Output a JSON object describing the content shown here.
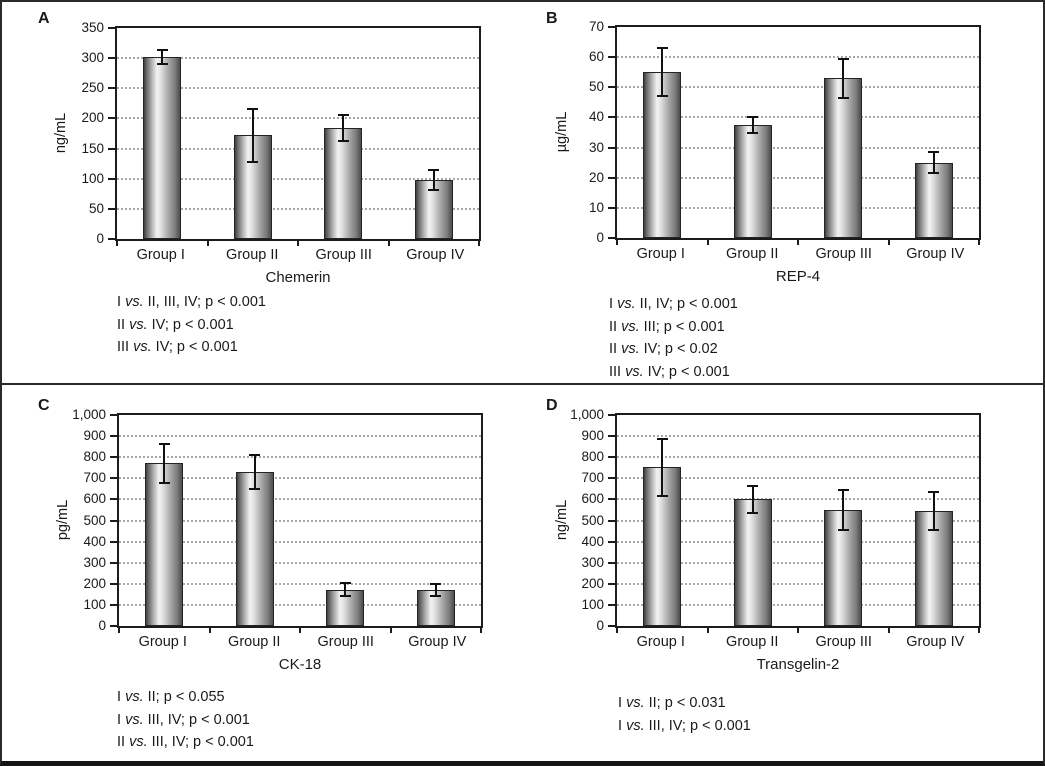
{
  "colors": {
    "background": "#ffffff",
    "outer_border": "#2a2a2a",
    "bottom_bar": "#141414",
    "axis": "#1c1c1c",
    "grid_dots": "#a8a8a8",
    "bar_dark": "#3f3f3f",
    "bar_light": "#f3f3f3",
    "error_bar": "#111111",
    "text": "#1a1a1a"
  },
  "chart_data": [
    {
      "type": "bar",
      "panel": "A",
      "title": "Chemerin",
      "ylabel": "ng/mL",
      "ylim": [
        0,
        350
      ],
      "yticks": [
        0,
        50,
        100,
        150,
        200,
        250,
        300,
        350
      ],
      "ytick_labels": [
        "0",
        "50",
        "100",
        "150",
        "200",
        "250",
        "300",
        "350"
      ],
      "categories": [
        "Group I",
        "Group II",
        "Group III",
        "Group IV"
      ],
      "values": [
        302,
        172,
        184,
        98
      ],
      "errors": [
        11,
        44,
        21,
        16
      ],
      "grid": "dotted-horizontal",
      "legend": "none",
      "annotations": [
        "I vs. II, III, IV; p < 0.001",
        "II vs. IV; p < 0.001",
        "III vs. IV; p < 0.001"
      ]
    },
    {
      "type": "bar",
      "panel": "B",
      "title": "REP-4",
      "ylabel": "µg/mL",
      "ylim": [
        0,
        70
      ],
      "yticks": [
        0,
        10,
        20,
        30,
        40,
        50,
        60,
        70
      ],
      "ytick_labels": [
        "0",
        "10",
        "20",
        "30",
        "40",
        "50",
        "60",
        "70"
      ],
      "categories": [
        "Group I",
        "Group II",
        "Group III",
        "Group IV"
      ],
      "values": [
        55,
        37.5,
        53,
        25
      ],
      "errors": [
        8,
        2.5,
        6.5,
        3.5
      ],
      "grid": "dotted-horizontal",
      "legend": "none",
      "annotations": [
        "I vs. II, IV; p < 0.001",
        "II vs. III; p < 0.001",
        "II vs. IV; p < 0.02",
        "III vs. IV; p < 0.001"
      ]
    },
    {
      "type": "bar",
      "panel": "C",
      "title": "CK-18",
      "ylabel": "pg/mL",
      "ylim": [
        0,
        1000
      ],
      "yticks": [
        0,
        100,
        200,
        300,
        400,
        500,
        600,
        700,
        800,
        900,
        1000
      ],
      "ytick_labels": [
        "0",
        "100",
        "200",
        "300",
        "400",
        "500",
        "600",
        "700",
        "800",
        "900",
        "1,000"
      ],
      "categories": [
        "Group I",
        "Group II",
        "Group III",
        "Group IV"
      ],
      "values": [
        772,
        730,
        172,
        172
      ],
      "errors": [
        92,
        80,
        30,
        28
      ],
      "grid": "dotted-horizontal",
      "legend": "none",
      "annotations": [
        "I vs. II; p < 0.055",
        "I vs. III, IV; p < 0.001",
        "II vs. III, IV; p < 0.001"
      ]
    },
    {
      "type": "bar",
      "panel": "D",
      "title": "Transgelin-2",
      "ylabel": "ng/mL",
      "ylim": [
        0,
        1000
      ],
      "yticks": [
        0,
        100,
        200,
        300,
        400,
        500,
        600,
        700,
        800,
        900,
        1000
      ],
      "ytick_labels": [
        "0",
        "100",
        "200",
        "300",
        "400",
        "500",
        "600",
        "700",
        "800",
        "900",
        "1,000"
      ],
      "categories": [
        "Group I",
        "Group II",
        "Group III",
        "Group IV"
      ],
      "values": [
        752,
        600,
        551,
        547
      ],
      "errors": [
        135,
        65,
        95,
        90
      ],
      "grid": "dotted-horizontal",
      "legend": "none",
      "annotations": [
        "I vs. II; p < 0.031",
        "I vs. III, IV; p < 0.001"
      ]
    }
  ]
}
